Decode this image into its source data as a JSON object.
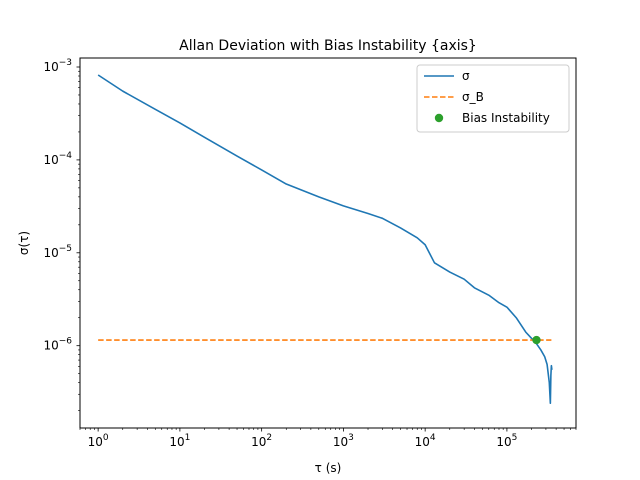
{
  "chart_data": {
    "type": "line",
    "title": "Allan Deviation with Bias Instability {axis}",
    "xlabel": "τ (s)",
    "ylabel": "σ(τ)",
    "xscale": "log",
    "yscale": "log",
    "xlim": [
      0.6,
      700000
    ],
    "ylim": [
      1.3e-07,
      0.00125
    ],
    "grid": false,
    "legend_position": "top-right",
    "x_tick_labels": [
      {
        "base": "10",
        "exp": "0"
      },
      {
        "base": "10",
        "exp": "1"
      },
      {
        "base": "10",
        "exp": "2"
      },
      {
        "base": "10",
        "exp": "3"
      },
      {
        "base": "10",
        "exp": "4"
      },
      {
        "base": "10",
        "exp": "5"
      }
    ],
    "y_tick_labels": [
      {
        "base": "10",
        "exp": "−6"
      },
      {
        "base": "10",
        "exp": "−5"
      },
      {
        "base": "10",
        "exp": "−4"
      },
      {
        "base": "10",
        "exp": "−3"
      }
    ],
    "series": [
      {
        "name": "σ",
        "style": "solid",
        "color": "#1f77b4",
        "x": [
          1,
          2,
          5,
          10,
          20,
          50,
          100,
          200,
          500,
          1000,
          2000,
          3000,
          5000,
          8000,
          10000,
          13000,
          20000,
          30000,
          40000,
          60000,
          80000,
          100000,
          130000,
          170000,
          200000,
          230000,
          260000,
          290000,
          310000,
          330000,
          340000,
          345000,
          350000,
          355000
        ],
        "y": [
          0.00082,
          0.00055,
          0.00035,
          0.00025,
          0.000175,
          0.00011,
          7.8e-05,
          5.5e-05,
          4e-05,
          3.2e-05,
          2.65e-05,
          2.35e-05,
          1.85e-05,
          1.45e-05,
          1.22e-05,
          7.8e-06,
          6.2e-06,
          5.2e-06,
          4.2e-06,
          3.5e-06,
          2.9e-06,
          2.6e-06,
          2e-06,
          1.4e-06,
          1.2e-06,
          1.05e-06,
          9e-07,
          7.6e-07,
          6.3e-07,
          4e-07,
          2.4e-07,
          4.8e-07,
          6.1e-07,
          5.5e-07
        ]
      },
      {
        "name": "σ_B",
        "style": "dashed",
        "color": "#ff7f0e",
        "x": [
          1,
          350000
        ],
        "y": [
          1.15e-06,
          1.15e-06
        ]
      },
      {
        "name": "Bias Instability",
        "style": "marker",
        "color": "#2ca02c",
        "x": [
          230000
        ],
        "y": [
          1.15e-06
        ]
      }
    ]
  }
}
